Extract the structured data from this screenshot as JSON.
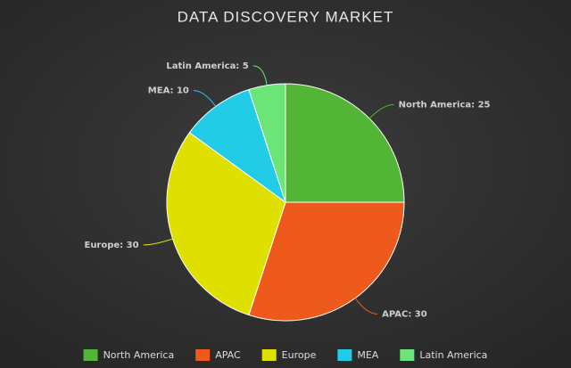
{
  "chart_data": {
    "type": "pie",
    "title": "DATA DISCOVERY MARKET",
    "categories": [
      "North America",
      "APAC",
      "Europe",
      "MEA",
      "Latin America"
    ],
    "values": [
      25,
      30,
      30,
      10,
      5
    ],
    "value_labels": [
      "North America: 25",
      "APAC: 30",
      "Europe: 30",
      "MEA: 10",
      "Latin America: 5"
    ],
    "colors": [
      "#52b536",
      "#ee5a1c",
      "#dfe000",
      "#22cce6",
      "#6be478"
    ]
  }
}
